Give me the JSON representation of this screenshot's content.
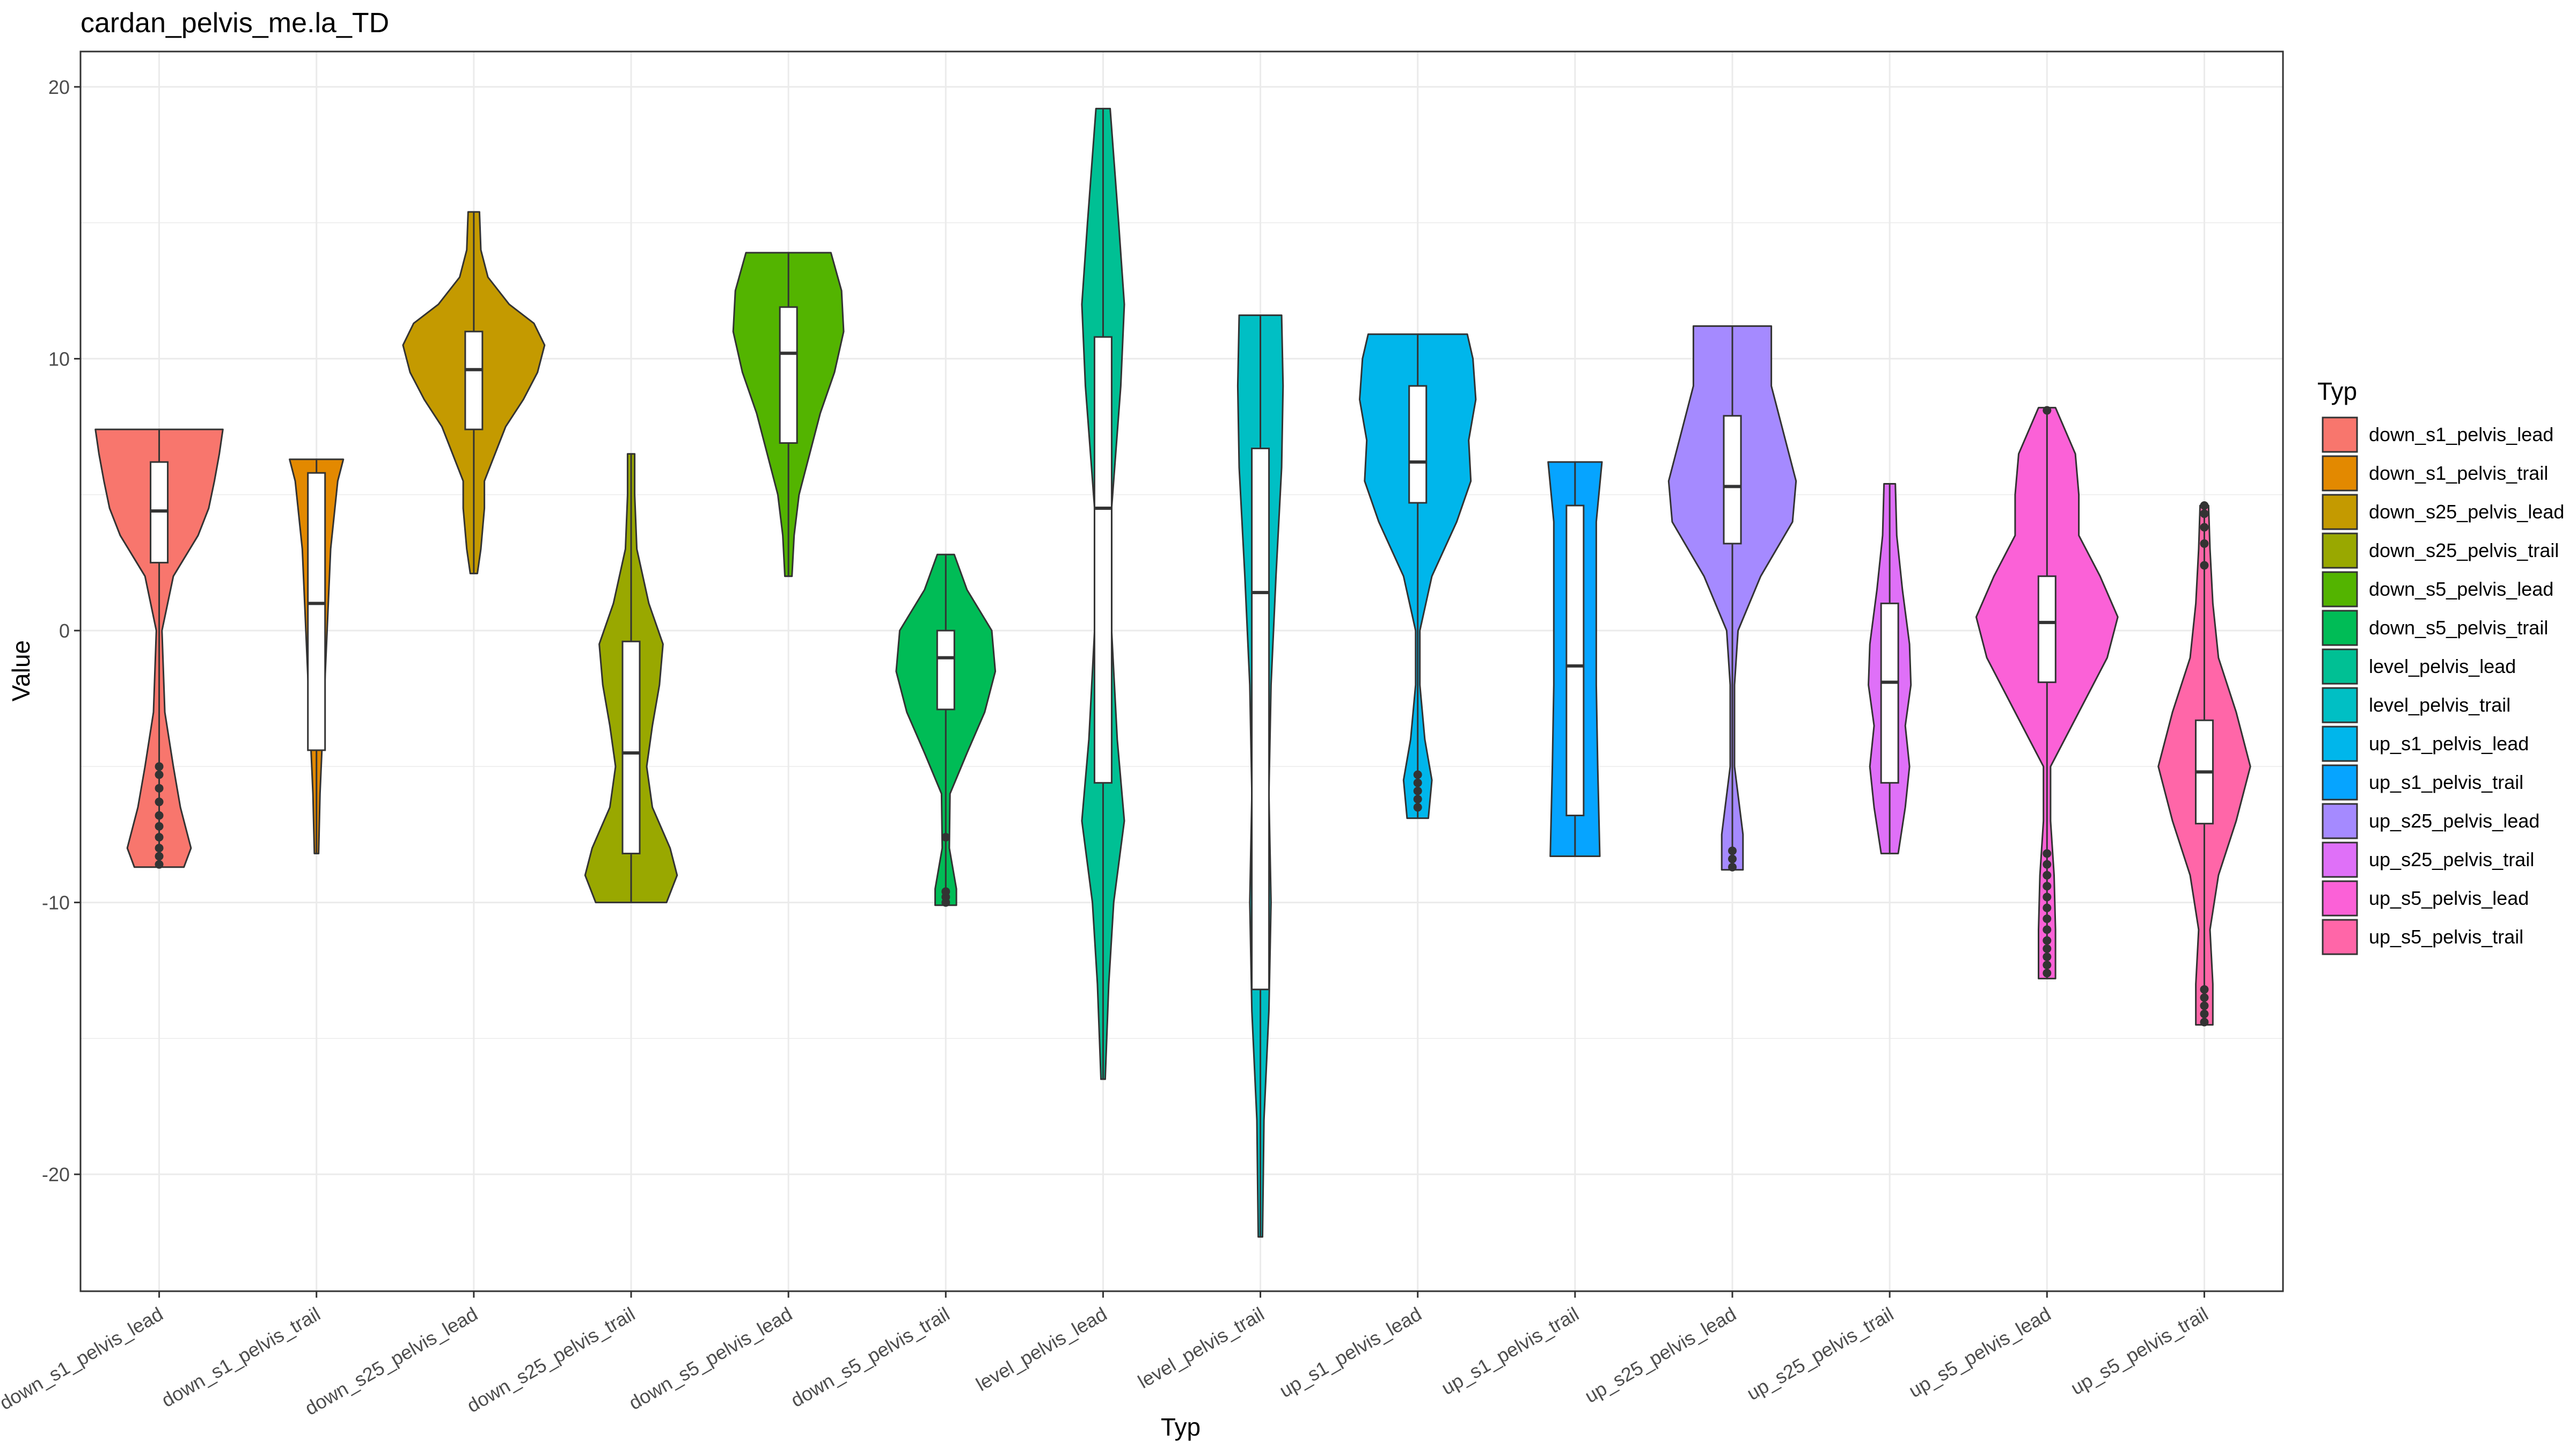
{
  "chart_data": {
    "type": "violin",
    "title": "cardan_pelvis_me.la_TD",
    "xlabel": "Typ",
    "ylabel": "Value",
    "ylim": [
      -24.3,
      21.3
    ],
    "yticks": [
      20,
      10,
      0,
      -10,
      -20
    ],
    "grid": true,
    "legend": {
      "title": "Typ",
      "position": "right"
    },
    "categories": [
      "down_s1_pelvis_lead",
      "down_s1_pelvis_trail",
      "down_s25_pelvis_lead",
      "down_s25_pelvis_trail",
      "down_s5_pelvis_lead",
      "down_s5_pelvis_trail",
      "level_pelvis_lead",
      "level_pelvis_trail",
      "up_s1_pelvis_lead",
      "up_s1_pelvis_trail",
      "up_s25_pelvis_lead",
      "up_s25_pelvis_trail",
      "up_s5_pelvis_lead",
      "up_s5_pelvis_trail"
    ],
    "series": [
      {
        "name": "down_s1_pelvis_lead",
        "color": "#F8766D",
        "min": -8.7,
        "max": 7.4,
        "q1": 2.5,
        "median": 4.4,
        "q3": 6.2,
        "density": [
          [
            -8.7,
            0.35
          ],
          [
            -8.0,
            0.45
          ],
          [
            -6.5,
            0.3
          ],
          [
            -5.0,
            0.2
          ],
          [
            -3.0,
            0.08
          ],
          [
            0.0,
            0.04
          ],
          [
            2.0,
            0.2
          ],
          [
            3.5,
            0.55
          ],
          [
            4.5,
            0.7
          ],
          [
            5.5,
            0.78
          ],
          [
            6.5,
            0.85
          ],
          [
            7.4,
            0.9
          ]
        ],
        "outliers": [
          -8.6,
          -8.3,
          -8.0,
          -7.6,
          -7.2,
          -6.8,
          -6.3,
          -5.8,
          -5.3,
          -5.0
        ]
      },
      {
        "name": "down_s1_pelvis_trail",
        "color": "#E38900",
        "min": -8.2,
        "max": 6.3,
        "q1": -4.4,
        "median": 1.0,
        "q3": 5.8,
        "density": [
          [
            -8.2,
            0.03
          ],
          [
            -6.0,
            0.05
          ],
          [
            -3.0,
            0.1
          ],
          [
            0.0,
            0.15
          ],
          [
            3.0,
            0.2
          ],
          [
            5.5,
            0.3
          ],
          [
            6.3,
            0.38
          ]
        ],
        "outliers": []
      },
      {
        "name": "down_s25_pelvis_lead",
        "color": "#C49A00",
        "min": 2.1,
        "max": 15.4,
        "q1": 7.4,
        "median": 9.6,
        "q3": 11.0,
        "density": [
          [
            2.1,
            0.05
          ],
          [
            3.0,
            0.1
          ],
          [
            4.5,
            0.15
          ],
          [
            5.5,
            0.15
          ],
          [
            6.5,
            0.3
          ],
          [
            7.5,
            0.45
          ],
          [
            8.5,
            0.7
          ],
          [
            9.5,
            0.9
          ],
          [
            10.5,
            1.0
          ],
          [
            11.3,
            0.85
          ],
          [
            12.0,
            0.5
          ],
          [
            13.0,
            0.2
          ],
          [
            14.0,
            0.1
          ],
          [
            15.4,
            0.08
          ]
        ],
        "outliers": []
      },
      {
        "name": "down_s25_pelvis_trail",
        "color": "#99A800",
        "min": -10.0,
        "max": 6.5,
        "q1": -8.2,
        "median": -4.5,
        "q3": -0.4,
        "density": [
          [
            -10.0,
            0.5
          ],
          [
            -9.0,
            0.65
          ],
          [
            -8.0,
            0.55
          ],
          [
            -6.5,
            0.3
          ],
          [
            -5.0,
            0.22
          ],
          [
            -3.5,
            0.3
          ],
          [
            -2.0,
            0.4
          ],
          [
            -0.5,
            0.45
          ],
          [
            1.0,
            0.25
          ],
          [
            3.0,
            0.08
          ],
          [
            5.0,
            0.05
          ],
          [
            6.5,
            0.05
          ]
        ],
        "outliers": []
      },
      {
        "name": "down_s5_pelvis_lead",
        "color": "#53B400",
        "min": 2.0,
        "max": 13.9,
        "q1": 6.9,
        "median": 10.2,
        "q3": 11.9,
        "density": [
          [
            2.0,
            0.05
          ],
          [
            3.5,
            0.08
          ],
          [
            5.0,
            0.15
          ],
          [
            6.5,
            0.3
          ],
          [
            8.0,
            0.45
          ],
          [
            9.5,
            0.65
          ],
          [
            11.0,
            0.78
          ],
          [
            12.5,
            0.75
          ],
          [
            13.9,
            0.6
          ]
        ],
        "outliers": []
      },
      {
        "name": "down_s5_pelvis_trail",
        "color": "#00BC56",
        "min": -10.1,
        "max": 2.8,
        "q1": -2.9,
        "median": -1.0,
        "q3": 0.0,
        "density": [
          [
            -10.1,
            0.15
          ],
          [
            -9.5,
            0.15
          ],
          [
            -8.0,
            0.05
          ],
          [
            -6.0,
            0.06
          ],
          [
            -4.5,
            0.3
          ],
          [
            -3.0,
            0.55
          ],
          [
            -1.5,
            0.7
          ],
          [
            0.0,
            0.65
          ],
          [
            1.5,
            0.3
          ],
          [
            2.8,
            0.12
          ]
        ],
        "outliers": [
          -10.0,
          -9.8,
          -9.6,
          -7.6
        ]
      },
      {
        "name": "level_pelvis_lead",
        "color": "#00C094",
        "min": -16.5,
        "max": 19.2,
        "q1": -5.6,
        "median": 4.5,
        "q3": 10.8,
        "density": [
          [
            -16.5,
            0.03
          ],
          [
            -13.0,
            0.08
          ],
          [
            -10.0,
            0.15
          ],
          [
            -7.0,
            0.3
          ],
          [
            -4.0,
            0.2
          ],
          [
            0.0,
            0.12
          ],
          [
            4.5,
            0.12
          ],
          [
            9.0,
            0.25
          ],
          [
            12.0,
            0.3
          ],
          [
            15.0,
            0.22
          ],
          [
            19.2,
            0.1
          ]
        ],
        "outliers": []
      },
      {
        "name": "level_pelvis_trail",
        "color": "#00BFC4",
        "min": -22.3,
        "max": 11.6,
        "q1": -13.2,
        "median": 1.4,
        "q3": 6.7,
        "density": [
          [
            -22.3,
            0.03
          ],
          [
            -18.0,
            0.05
          ],
          [
            -14.0,
            0.12
          ],
          [
            -10.0,
            0.15
          ],
          [
            -6.0,
            0.12
          ],
          [
            -2.0,
            0.15
          ],
          [
            2.0,
            0.22
          ],
          [
            6.0,
            0.3
          ],
          [
            9.0,
            0.32
          ],
          [
            11.6,
            0.3
          ]
        ],
        "outliers": []
      },
      {
        "name": "up_s1_pelvis_lead",
        "color": "#00B6EB",
        "min": -6.9,
        "max": 10.9,
        "q1": 4.7,
        "median": 6.2,
        "q3": 9.0,
        "density": [
          [
            -6.9,
            0.15
          ],
          [
            -5.5,
            0.2
          ],
          [
            -4.0,
            0.1
          ],
          [
            -2.0,
            0.03
          ],
          [
            0.0,
            0.03
          ],
          [
            2.0,
            0.2
          ],
          [
            4.0,
            0.55
          ],
          [
            5.5,
            0.75
          ],
          [
            7.0,
            0.72
          ],
          [
            8.5,
            0.82
          ],
          [
            10.0,
            0.78
          ],
          [
            10.9,
            0.7
          ]
        ],
        "outliers": [
          -6.5,
          -6.2,
          -5.9,
          -5.6,
          -5.3
        ]
      },
      {
        "name": "up_s1_pelvis_trail",
        "color": "#06A4FF",
        "min": -8.3,
        "max": 6.2,
        "q1": -6.8,
        "median": -1.3,
        "q3": 4.6,
        "density": [
          [
            -8.3,
            0.35
          ],
          [
            -5.0,
            0.32
          ],
          [
            -2.0,
            0.3
          ],
          [
            1.0,
            0.3
          ],
          [
            4.0,
            0.3
          ],
          [
            6.2,
            0.38
          ]
        ],
        "outliers": []
      },
      {
        "name": "up_s25_pelvis_lead",
        "color": "#A58AFF",
        "min": -8.8,
        "max": 11.2,
        "q1": 3.2,
        "median": 5.3,
        "q3": 7.9,
        "density": [
          [
            -8.8,
            0.15
          ],
          [
            -7.5,
            0.15
          ],
          [
            -5.0,
            0.03
          ],
          [
            -2.0,
            0.03
          ],
          [
            0.0,
            0.08
          ],
          [
            2.0,
            0.4
          ],
          [
            4.0,
            0.85
          ],
          [
            5.5,
            0.9
          ],
          [
            7.0,
            0.75
          ],
          [
            9.0,
            0.55
          ],
          [
            10.5,
            0.55
          ],
          [
            11.2,
            0.55
          ]
        ],
        "outliers": [
          -8.7,
          -8.4,
          -8.1
        ]
      },
      {
        "name": "up_s25_pelvis_trail",
        "color": "#DF70F8",
        "min": -8.2,
        "max": 5.4,
        "q1": -5.6,
        "median": -1.9,
        "q3": 1.0,
        "density": [
          [
            -8.2,
            0.12
          ],
          [
            -6.5,
            0.22
          ],
          [
            -5.0,
            0.28
          ],
          [
            -3.5,
            0.22
          ],
          [
            -2.0,
            0.3
          ],
          [
            -0.5,
            0.28
          ],
          [
            1.5,
            0.18
          ],
          [
            3.5,
            0.1
          ],
          [
            5.4,
            0.08
          ]
        ],
        "outliers": []
      },
      {
        "name": "up_s5_pelvis_lead",
        "color": "#FB61D7",
        "min": -12.8,
        "max": 8.2,
        "q1": -1.9,
        "median": 0.3,
        "q3": 2.0,
        "density": [
          [
            -12.8,
            0.12
          ],
          [
            -11.0,
            0.12
          ],
          [
            -9.0,
            0.1
          ],
          [
            -7.0,
            0.05
          ],
          [
            -5.0,
            0.05
          ],
          [
            -3.0,
            0.45
          ],
          [
            -1.0,
            0.85
          ],
          [
            0.5,
            1.0
          ],
          [
            2.0,
            0.75
          ],
          [
            3.5,
            0.45
          ],
          [
            5.0,
            0.45
          ],
          [
            6.5,
            0.4
          ],
          [
            8.2,
            0.12
          ]
        ],
        "outliers": [
          -12.6,
          -12.3,
          -12.0,
          -11.7,
          -11.4,
          -11.0,
          -10.6,
          -10.2,
          -9.8,
          -9.4,
          -9.0,
          -8.6,
          -8.2,
          8.1
        ]
      },
      {
        "name": "up_s5_pelvis_trail",
        "color": "#FF66A8",
        "min": -14.5,
        "max": 4.6,
        "q1": -7.1,
        "median": -5.2,
        "q3": -3.3,
        "density": [
          [
            -14.5,
            0.12
          ],
          [
            -13.0,
            0.12
          ],
          [
            -11.0,
            0.08
          ],
          [
            -9.0,
            0.2
          ],
          [
            -7.0,
            0.45
          ],
          [
            -5.0,
            0.65
          ],
          [
            -3.0,
            0.45
          ],
          [
            -1.0,
            0.2
          ],
          [
            1.0,
            0.12
          ],
          [
            3.0,
            0.08
          ],
          [
            4.6,
            0.06
          ]
        ],
        "outliers": [
          -14.4,
          -14.1,
          -13.8,
          -13.5,
          -13.2,
          2.4,
          3.2,
          3.8,
          4.3,
          4.6
        ]
      }
    ]
  }
}
